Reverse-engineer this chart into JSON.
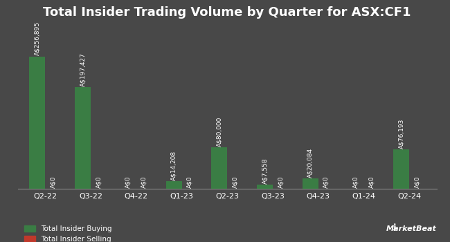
{
  "title": "Total Insider Trading Volume by Quarter for ASX:CF1",
  "quarters": [
    "Q2-22",
    "Q3-22",
    "Q4-22",
    "Q1-23",
    "Q2-23",
    "Q3-23",
    "Q4-23",
    "Q1-24",
    "Q2-24"
  ],
  "buying": [
    256895,
    197427,
    0,
    14208,
    80000,
    7558,
    20084,
    0,
    76193
  ],
  "selling": [
    0,
    0,
    0,
    0,
    0,
    0,
    0,
    0,
    0
  ],
  "buying_labels": [
    "A$256,895",
    "A$197,427",
    "A$0",
    "A$14,208",
    "A$80,000",
    "A$7,558",
    "A$20,084",
    "A$0",
    "A$76,193"
  ],
  "selling_labels": [
    "A$0",
    "A$0",
    "A$0",
    "A$0",
    "A$0",
    "A$0",
    "A$0",
    "A$0",
    "A$0"
  ],
  "buying_color": "#3a7d44",
  "selling_color": "#c0392b",
  "background_color": "#484848",
  "text_color": "#ffffff",
  "bar_width": 0.35,
  "title_fontsize": 13,
  "legend_buying": "Total Insider Buying",
  "legend_selling": "Total Insider Selling",
  "ylim": [
    0,
    310000
  ],
  "label_fontsize": 6.5,
  "tick_fontsize": 8,
  "legend_fontsize": 7.5
}
